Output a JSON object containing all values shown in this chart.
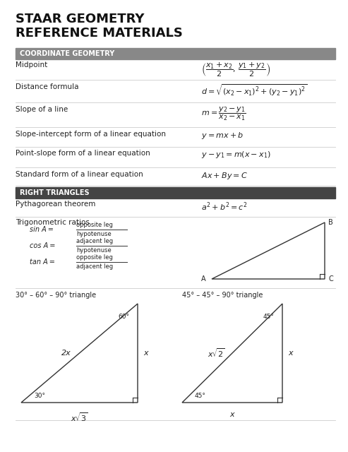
{
  "title_line1": "STAAR GEOMETRY",
  "title_line2": "REFERENCE MATERIALS",
  "section1_header": "COORDINATE GEOMETRY",
  "section2_header": "RIGHT TRIANGLES",
  "bg_color": "#ffffff",
  "header_bg1": "#888888",
  "header_bg2": "#444444",
  "header_text_color": "#ffffff",
  "divider_color": "#cccccc",
  "text_color": "#222222",
  "coord_rows": [
    {
      "label": "Midpoint"
    },
    {
      "label": "Distance formula"
    },
    {
      "label": "Slope of a line"
    },
    {
      "label": "Slope-intercept form of a linear equation"
    },
    {
      "label": "Point-slope form of a linear equation"
    },
    {
      "label": "Standard form of a linear equation"
    }
  ],
  "title_fs": 13,
  "label_fs": 7.5,
  "formula_fs": 8,
  "header_fs": 7,
  "small_fs": 6.5
}
